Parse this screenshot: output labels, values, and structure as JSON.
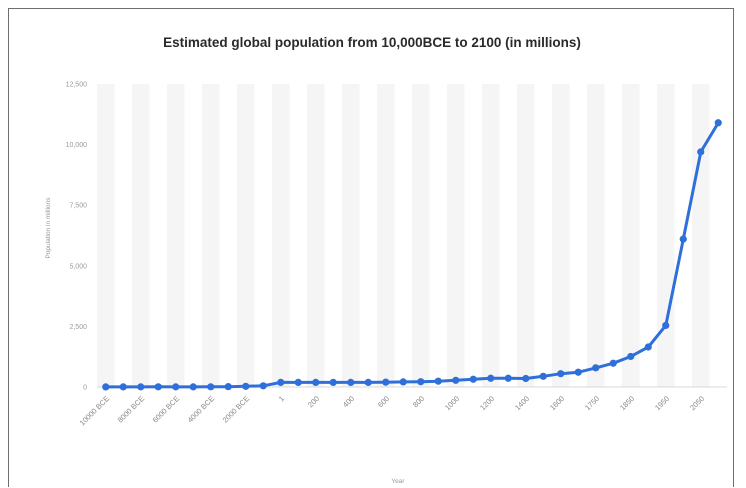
{
  "chart_data": {
    "type": "line",
    "title": "Estimated global population from 10,000BCE to 2100 (in millions)",
    "xlabel": "Year",
    "ylabel": "Population in millions",
    "ylim": [
      0,
      12500
    ],
    "yticks": [
      0,
      2500,
      5000,
      7500,
      10000,
      12500
    ],
    "ytick_labels": [
      "0",
      "2,500",
      "5,000",
      "7,500",
      "10,000",
      "12,500"
    ],
    "grid": "alternating vertical bands",
    "legend": "none",
    "color": "#2f6fd9",
    "x": [
      "10000 BCE",
      "9000 BCE",
      "8000 BCE",
      "7000 BCE",
      "6000 BCE",
      "5000 BCE",
      "4000 BCE",
      "3000 BCE",
      "2000 BCE",
      "1000 BCE",
      "1",
      "100",
      "200",
      "300",
      "400",
      "500",
      "600",
      "700",
      "800",
      "900",
      "1000",
      "1100",
      "1200",
      "1300",
      "1400",
      "1500",
      "1600",
      "1700",
      "1750",
      "1800",
      "1850",
      "1900",
      "1950",
      "2000",
      "2050",
      "2100"
    ],
    "x_tick_labels": [
      "10000 BCE",
      "8000 BCE",
      "6000 BCE",
      "4000 BCE",
      "2000 BCE",
      "1",
      "200",
      "400",
      "600",
      "800",
      "1000",
      "1200",
      "1400",
      "1600",
      "1750",
      "1850",
      "1950",
      "2050"
    ],
    "series": [
      {
        "values": [
          4,
          5,
          5,
          7,
          5,
          5,
          7,
          14,
          27,
          50,
          190,
          190,
          190,
          190,
          190,
          190,
          200,
          210,
          220,
          240,
          275,
          320,
          360,
          360,
          350,
          440,
          550,
          610,
          790,
          980,
          1260,
          1650,
          2540,
          6100,
          9700,
          10900
        ]
      }
    ]
  }
}
